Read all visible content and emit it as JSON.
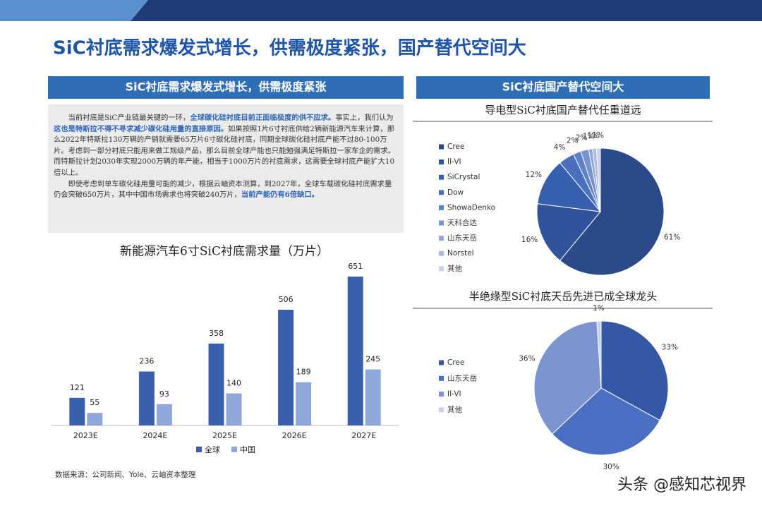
{
  "title": "SiC衬底需求爆发式增长，供需极度紧张，国产替代空间大",
  "left_header": "SiC衬底需求爆发式增长，供需极度紧张",
  "right_header": "SiC衬底国产替代空间大",
  "paragraphs": [
    [
      {
        "text": "当前衬底是SiC产业链最关键的一环，",
        "emphasis": false
      },
      {
        "text": "全球碳化硅衬底目前正面临极度的供不应求。",
        "emphasis": true
      },
      {
        "text": "事实上，我们认为",
        "emphasis": false
      },
      {
        "text": "这也是特斯拉不得不寻求减少碳化硅用量的直接原因。",
        "emphasis": true
      },
      {
        "text": "如果按照1片6寸衬底供给2辆新能源汽车来计算，那么2022年特斯拉130万辆的产销就需要65万片6寸碳化硅衬底，同期全球碳化硅衬底产能不过80-100万片。考虑到一部分衬底只能用来做工规级产品，那么目前全球产能也只能勉强满足特斯拉一家车企的需求。而特斯拉计划2030年实现2000万辆的年产能，相当于1000万片的衬底需求，这需要全球衬底产能扩大10倍以上。",
        "emphasis": false
      }
    ],
    [
      {
        "text": "即使考虑到单车碳化硅用量可能的减少，根据云岫资本测算，到2027年，全球车载碳化硅衬底需求量仍会突破650万片，其中中国市场需求也将突破240万片，",
        "emphasis": false
      },
      {
        "text": "当前产能仍有6倍缺口。",
        "emphasis": true
      }
    ]
  ],
  "source": "数据来源：公司新闻、Yole、云岫资本整理",
  "watermark": "头条 @感知芯视界",
  "chart_data": [
    {
      "type": "bar",
      "title": "新能源汽车6寸SiC衬底需求量（万片）",
      "categories": [
        "2023E",
        "2024E",
        "2025E",
        "2026E",
        "2027E"
      ],
      "series": [
        {
          "name": "全球",
          "color": "#3a5fad",
          "values": [
            121,
            236,
            358,
            506,
            651
          ]
        },
        {
          "name": "中国",
          "color": "#8fa7d9",
          "values": [
            55,
            93,
            140,
            189,
            245
          ]
        }
      ]
    },
    {
      "type": "pie",
      "title": "导电型SiC衬底国产替代任重道远",
      "categories": [
        "Cree",
        "II-VI",
        "SiCrystal",
        "Dow",
        "ShowaDenko",
        "天科合达",
        "山东天岳",
        "Norstel",
        "其他"
      ],
      "values": [
        61,
        16,
        12,
        4,
        2,
        2,
        1,
        1,
        1
      ],
      "value_labels": [
        "61%",
        "16%",
        "12%",
        "4%",
        "2%",
        "2%",
        "1%",
        "1%",
        "1%"
      ],
      "colors": [
        "#2b4a8a",
        "#30539c",
        "#3760ae",
        "#4a70bd",
        "#5f82c6",
        "#7593cf",
        "#8ea6d8",
        "#aab9e0",
        "#c9d2eb"
      ]
    },
    {
      "type": "pie",
      "title": "半绝缘型SiC衬底天岳先进已成全球龙头",
      "categories": [
        "Cree",
        "山东天岳",
        "II-VI",
        "其他"
      ],
      "values": [
        33,
        30,
        36,
        1
      ],
      "value_labels": [
        "33%",
        "30%",
        "36%",
        "1%"
      ],
      "colors": [
        "#3558a6",
        "#4b6fc2",
        "#7c94d0",
        "#c8d0e8"
      ]
    }
  ]
}
